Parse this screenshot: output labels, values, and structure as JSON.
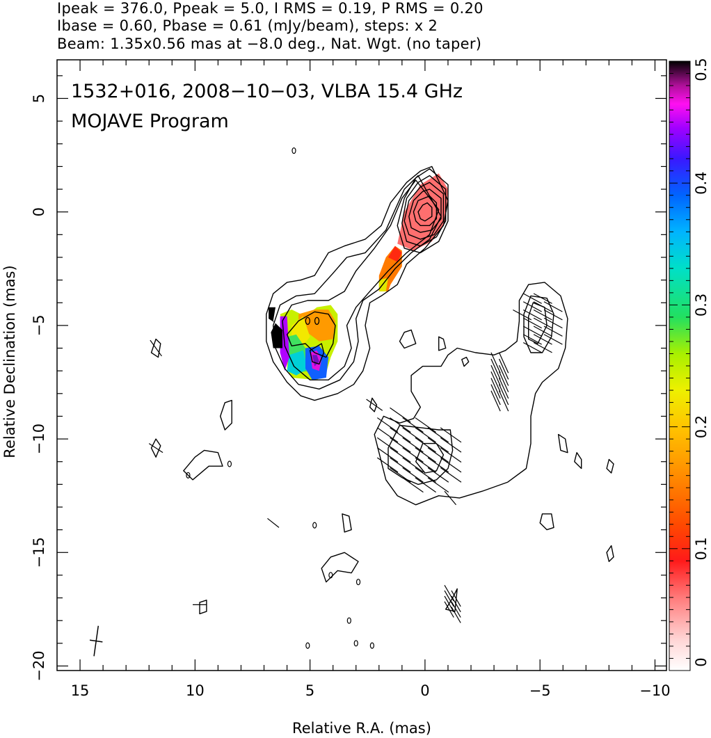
{
  "header": {
    "line1": "Ipeak = 376.0, Ppeak = 5.0, I RMS = 0.19, P RMS = 0.20",
    "line2": "Ibase = 0.60, Pbase = 0.61 (mJy/beam), steps: x 2",
    "line3": "Beam: 1.35x0.56 mas at −8.0 deg., Nat. Wgt. (no taper)"
  },
  "chart_data": {
    "type": "heatmap",
    "annotation_line1": "1532+016, 2008−10−03, VLBA 15.4 GHz",
    "annotation_line2": "MOJAVE Program",
    "xlabel": "Relative R.A. (mas)",
    "ylabel": "Relative Declination (mas)",
    "xlim": [
      16.0,
      -10.5
    ],
    "ylim": [
      -20.2,
      6.7
    ],
    "x_ticks": [
      15,
      10,
      5,
      0,
      -5,
      -10
    ],
    "x_tick_labels": [
      "15",
      "10",
      "5",
      "0",
      "−5",
      "−10"
    ],
    "y_ticks": [
      5,
      0,
      -5,
      -10,
      -15,
      -20
    ],
    "y_tick_labels": [
      "5",
      "0",
      "−5",
      "−10",
      "−15",
      "−20"
    ],
    "colorbar": {
      "range": [
        0,
        0.5
      ],
      "ticks": [
        0,
        0.1,
        0.2,
        0.3,
        0.4,
        0.5
      ],
      "tick_labels": [
        "0",
        "0.1",
        "0.2",
        "0.3",
        "0.4",
        "0.5"
      ]
    },
    "beam": {
      "major_mas": 1.35,
      "minor_mas": 0.56,
      "pa_deg": -8.0,
      "center": [
        14.3,
        -18.9
      ]
    },
    "core": {
      "x": 0.0,
      "y": 0.0,
      "peak_mJy_per_beam": 376.0
    },
    "contour_levels_mJy_per_beam": [
      0.6,
      1.2,
      2.4,
      4.8,
      9.6,
      19.2,
      38.4,
      76.8,
      153.6,
      307.2
    ],
    "polarization_regions": [
      {
        "name": "core",
        "x": 0.2,
        "y": 0.2,
        "fraction": 0.1
      },
      {
        "name": "inner-jet",
        "x": 1.5,
        "y": -2.6,
        "fraction": 0.13
      },
      {
        "name": "west-knot",
        "x": 5.0,
        "y": -5.7,
        "fraction": 0.28
      }
    ],
    "evpa_regions": [
      {
        "name": "east-component",
        "x": -4.7,
        "y": -5.0
      },
      {
        "name": "south-component",
        "x": -0.6,
        "y": -10.7
      }
    ]
  }
}
